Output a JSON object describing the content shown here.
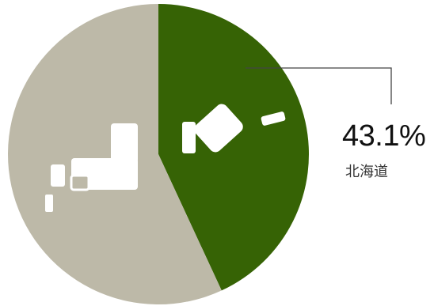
{
  "chart_data": {
    "type": "pie",
    "slices": [
      {
        "label": "北海道",
        "value": 43.1,
        "color": "#366305"
      },
      {
        "label": "",
        "value": 56.9,
        "color": "#bdb9a8"
      }
    ],
    "annotation": {
      "value_text": "43.1%",
      "label": "北海道"
    },
    "icon": "japan-map-icon"
  }
}
